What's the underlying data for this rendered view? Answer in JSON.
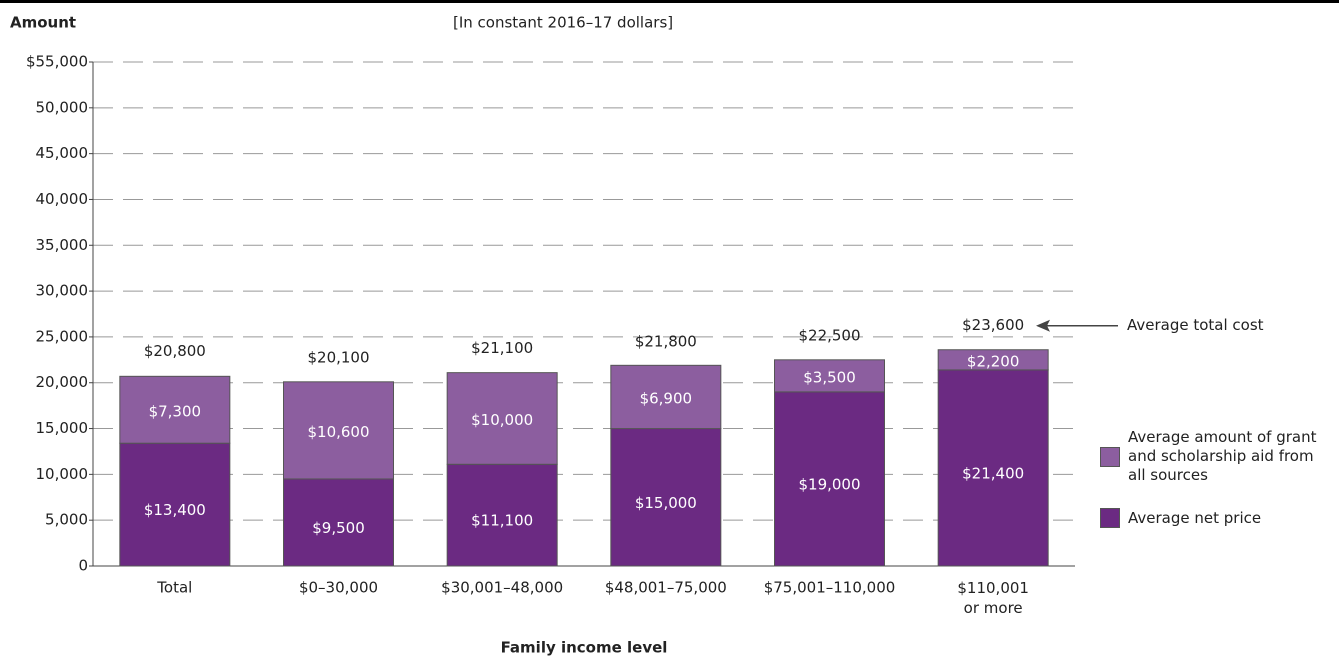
{
  "chart_data": {
    "type": "stacked_bar",
    "y_axis_label": "Amount",
    "subtitle": "[In constant 2016–17 dollars]",
    "x_axis_label": "Family income level",
    "categories": [
      "Total",
      "$0–30,000",
      "$30,001–48,000",
      "$48,001–75,000",
      "$75,001–110,000",
      "$110,001 or more"
    ],
    "series": [
      {
        "name": "Average net price",
        "color": "#6b2a82",
        "values": [
          13400,
          9500,
          11100,
          15000,
          19000,
          21400
        ],
        "value_labels": [
          "$13,400",
          "$9,500",
          "$11,100",
          "$15,000",
          "$19,000",
          "$21,400"
        ]
      },
      {
        "name": "Average amount of grant and scholarship aid from all sources",
        "color": "#8c5e9f",
        "values": [
          7300,
          10600,
          10000,
          6900,
          3500,
          2200
        ],
        "value_labels": [
          "$7,300",
          "$10,600",
          "$10,000",
          "$6,900",
          "$3,500",
          "$2,200"
        ]
      }
    ],
    "totals": [
      20800,
      20100,
      21100,
      21800,
      22500,
      23600
    ],
    "total_labels": [
      "$20,800",
      "$20,100",
      "$21,100",
      "$21,800",
      "$22,500",
      "$23,600"
    ],
    "annotation": "Average total cost",
    "ylim": [
      0,
      55000
    ],
    "yticks": [
      0,
      {
        "value": 5000,
        "label": "5,000"
      },
      {
        "value": 10000,
        "label": "10,000"
      },
      {
        "value": 15000,
        "label": "15,000"
      },
      {
        "value": 20000,
        "label": "20,000"
      },
      {
        "value": 25000,
        "label": "25,000"
      },
      {
        "value": 30000,
        "label": "30,000"
      },
      {
        "value": 35000,
        "label": "35,000"
      },
      {
        "value": 40000,
        "label": "40,000"
      },
      {
        "value": 45000,
        "label": "45,000"
      },
      {
        "value": 50000,
        "label": "50,000"
      },
      {
        "value": 55000,
        "label": "$55,000"
      }
    ],
    "grid": true
  }
}
